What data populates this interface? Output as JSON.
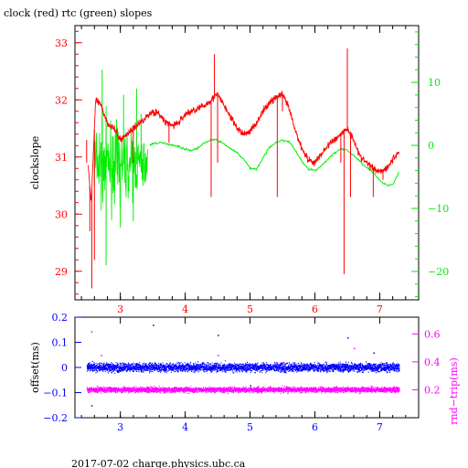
{
  "title": "clock (red) rtc (green) slopes",
  "footer": "2017-07-02 charge.physics.ubc.ca",
  "colors": {
    "red": "#ff0000",
    "green": "#00ee00",
    "blue": "#0000ff",
    "magenta": "#ff00ff",
    "black": "#000000"
  },
  "chart_data": [
    {
      "type": "line",
      "title": "clock (red) rtc (green) slopes",
      "ylabel": "clockslope",
      "xlim": [
        2.3,
        7.6
      ],
      "ylim": [
        28.5,
        33.3
      ],
      "y2lim": [
        -24.5,
        19
      ],
      "x_ticks": [
        3,
        4,
        5,
        6,
        7
      ],
      "x_tick_labels": [
        "3",
        "4",
        "5",
        "6",
        "7"
      ],
      "y_ticks": [
        29,
        30,
        31,
        32,
        33
      ],
      "y_tick_labels": [
        "29",
        "30",
        "31",
        "32",
        "33"
      ],
      "y2_ticks": [
        -20,
        -10,
        0,
        10
      ],
      "y2_tick_labels": [
        "−20",
        "−10",
        "0",
        "10"
      ],
      "series": [
        {
          "name": "clock (red)",
          "color": "#ff0000",
          "axis": "left",
          "x": [
            2.5,
            2.55,
            2.62,
            2.7,
            2.8,
            2.9,
            3.0,
            3.1,
            3.2,
            3.3,
            3.4,
            3.5,
            3.6,
            3.7,
            3.8,
            3.9,
            4.0,
            4.1,
            4.2,
            4.3,
            4.4,
            4.5,
            4.6,
            4.7,
            4.8,
            4.9,
            5.0,
            5.1,
            5.2,
            5.3,
            5.4,
            5.5,
            5.6,
            5.7,
            5.8,
            5.9,
            6.0,
            6.1,
            6.2,
            6.3,
            6.4,
            6.5,
            6.6,
            6.7,
            6.8,
            6.9,
            7.0,
            7.1,
            7.2,
            7.3
          ],
          "y": [
            30.9,
            30.2,
            32.0,
            31.9,
            31.6,
            31.5,
            31.3,
            31.4,
            31.5,
            31.6,
            31.7,
            31.8,
            31.75,
            31.6,
            31.55,
            31.6,
            31.75,
            31.8,
            31.85,
            31.9,
            32.0,
            32.1,
            31.9,
            31.7,
            31.5,
            31.4,
            31.45,
            31.6,
            31.8,
            31.95,
            32.05,
            32.1,
            31.85,
            31.45,
            31.15,
            30.95,
            30.9,
            31.05,
            31.2,
            31.3,
            31.4,
            31.5,
            31.3,
            31.0,
            30.9,
            30.8,
            30.75,
            30.8,
            30.95,
            31.1
          ],
          "spikes": [
            {
              "x": 2.48,
              "y": 31.3
            },
            {
              "x": 2.53,
              "y": 29.7
            },
            {
              "x": 2.56,
              "y": 28.7
            },
            {
              "x": 2.6,
              "y": 29.2
            },
            {
              "x": 3.2,
              "y": 30.9
            },
            {
              "x": 3.75,
              "y": 31.25
            },
            {
              "x": 4.4,
              "y": 30.3
            },
            {
              "x": 4.45,
              "y": 32.8
            },
            {
              "x": 4.5,
              "y": 30.9
            },
            {
              "x": 5.42,
              "y": 30.3
            },
            {
              "x": 5.5,
              "y": 31.8
            },
            {
              "x": 6.4,
              "y": 30.9
            },
            {
              "x": 6.45,
              "y": 28.95
            },
            {
              "x": 6.5,
              "y": 32.9
            },
            {
              "x": 6.55,
              "y": 30.3
            },
            {
              "x": 6.9,
              "y": 30.3
            },
            {
              "x": 7.05,
              "y": 30.6
            }
          ]
        },
        {
          "name": "rtc (green)",
          "color": "#00ee00",
          "axis": "right",
          "x": [
            3.45,
            3.5,
            3.6,
            3.7,
            3.8,
            3.9,
            4.0,
            4.1,
            4.2,
            4.3,
            4.4,
            4.5,
            4.6,
            4.7,
            4.8,
            4.9,
            5.0,
            5.1,
            5.2,
            5.3,
            5.4,
            5.5,
            5.6,
            5.7,
            5.8,
            5.9,
            6.0,
            6.1,
            6.2,
            6.3,
            6.4,
            6.5,
            6.6,
            6.7,
            6.8,
            6.9,
            7.0,
            7.1,
            7.2,
            7.3
          ],
          "y": [
            0.0,
            0.3,
            0.4,
            0.3,
            0.1,
            -0.2,
            -0.6,
            -0.8,
            -0.4,
            0.4,
            0.9,
            0.8,
            0.2,
            -0.5,
            -1.2,
            -2.2,
            -3.6,
            -3.8,
            -2.0,
            -0.3,
            0.5,
            0.8,
            0.6,
            -0.8,
            -2.6,
            -3.8,
            -4.0,
            -3.3,
            -2.2,
            -1.2,
            -0.6,
            -0.8,
            -1.6,
            -2.6,
            -3.5,
            -4.3,
            -5.6,
            -6.3,
            -6.2,
            -4.2
          ],
          "noise_band": {
            "x_from": 2.6,
            "x_to": 3.42,
            "y_from": -19,
            "y_to": 12,
            "center": -3
          }
        }
      ]
    },
    {
      "type": "scatter",
      "ylabel": "offset(ms)",
      "y2label": "rnd−trip(ms)",
      "xlim": [
        2.3,
        7.6
      ],
      "ylim": [
        -0.2,
        0.2
      ],
      "y2lim": [
        0.0,
        0.72
      ],
      "x_ticks": [
        3,
        4,
        5,
        6,
        7
      ],
      "x_tick_labels": [
        "3",
        "4",
        "5",
        "6",
        "7"
      ],
      "y_ticks": [
        -0.2,
        -0.1,
        0,
        0.1,
        0.2
      ],
      "y_tick_labels": [
        "−0.2",
        "−0.1",
        "0",
        "0.1",
        "0.2"
      ],
      "y2_ticks": [
        0.2,
        0.4,
        0.6
      ],
      "y2_tick_labels": [
        "0.2",
        "0.4",
        "0.6"
      ],
      "series": [
        {
          "name": "offset",
          "color": "#0000ff",
          "axis": "left",
          "x_range": [
            2.48,
            7.3
          ],
          "center": 0.0,
          "spread": 0.03,
          "outliers": [
            {
              "x": 2.55,
              "y": -0.15
            },
            {
              "x": 3.5,
              "y": 0.17
            },
            {
              "x": 4.5,
              "y": 0.13
            },
            {
              "x": 5.0,
              "y": -0.07
            },
            {
              "x": 6.5,
              "y": 0.12
            },
            {
              "x": 6.9,
              "y": 0.06
            }
          ]
        },
        {
          "name": "rnd-trip",
          "color": "#ff00ff",
          "axis": "right",
          "x_range": [
            2.48,
            7.3
          ],
          "center": 0.2,
          "spread": 0.04,
          "outliers": [
            {
              "x": 2.55,
              "y": 0.62
            },
            {
              "x": 2.7,
              "y": 0.45
            },
            {
              "x": 4.5,
              "y": 0.45
            },
            {
              "x": 5.5,
              "y": 0.4
            },
            {
              "x": 6.6,
              "y": 0.5
            }
          ]
        }
      ]
    }
  ]
}
